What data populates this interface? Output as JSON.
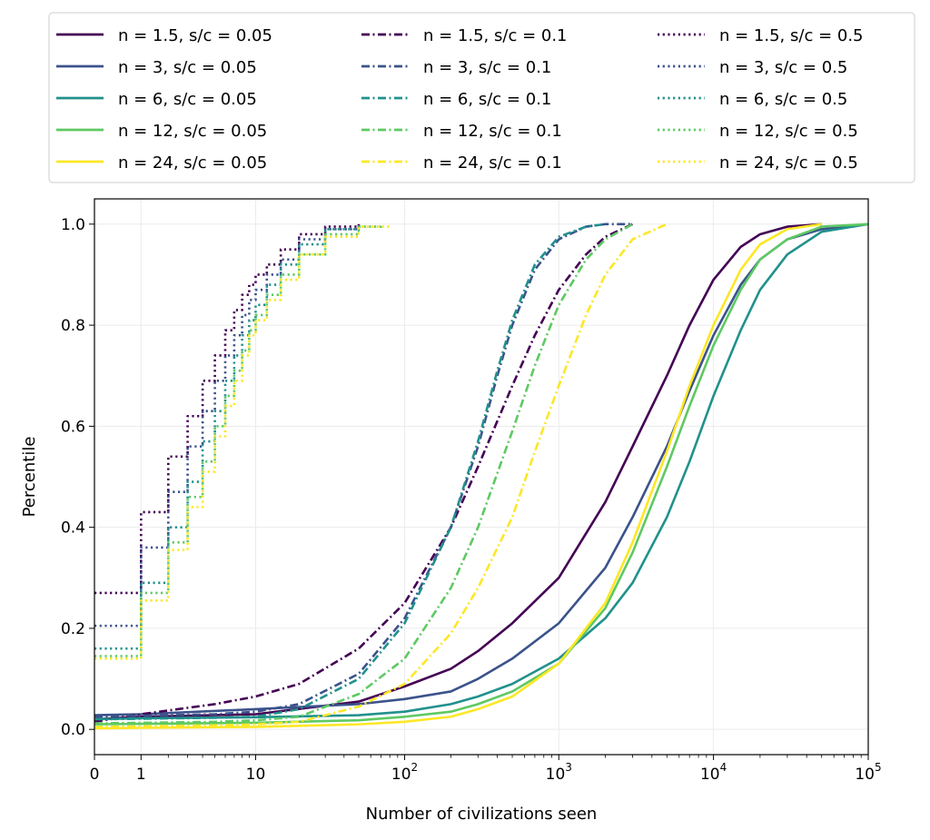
{
  "chart_data": {
    "type": "line",
    "title": "",
    "xlabel": "Number of civilizations seen",
    "ylabel": "Percentile",
    "xscale": "symlog",
    "xlim": [
      0,
      100000
    ],
    "ylim": [
      -0.05,
      1.05
    ],
    "grid": true,
    "legend_position": "top",
    "x_tick_labels": [
      {
        "value": 0,
        "label": "0",
        "exp": ""
      },
      {
        "value": 1,
        "label": "1",
        "exp": ""
      },
      {
        "value": 10,
        "label": "10",
        "exp": ""
      },
      {
        "value": 100,
        "label": "10",
        "exp": "2"
      },
      {
        "value": 1000,
        "label": "10",
        "exp": "3"
      },
      {
        "value": 10000,
        "label": "10",
        "exp": "4"
      },
      {
        "value": 100000,
        "label": "10",
        "exp": "5"
      }
    ],
    "y_ticks": [
      0.0,
      0.2,
      0.4,
      0.6,
      0.8,
      1.0
    ],
    "y_tick_labels": [
      "0.0",
      "0.2",
      "0.4",
      "0.6",
      "0.8",
      "1.0"
    ],
    "colors": {
      "n1.5": "#440154",
      "n3": "#3b528b",
      "n6": "#21918c",
      "n12": "#5ec962",
      "n24": "#fde725"
    },
    "series": [
      {
        "name": "n = 1.5, s/c = 0.05",
        "color": "#440154",
        "dash": "solid",
        "x": [
          0,
          1,
          10,
          50,
          100,
          200,
          300,
          500,
          1000,
          2000,
          3000,
          5000,
          7000,
          10000,
          15000,
          20000,
          30000,
          50000
        ],
        "y": [
          0.02,
          0.025,
          0.03,
          0.055,
          0.085,
          0.12,
          0.155,
          0.21,
          0.3,
          0.45,
          0.56,
          0.7,
          0.8,
          0.89,
          0.955,
          0.98,
          0.995,
          1.0
        ]
      },
      {
        "name": "n = 3, s/c = 0.05",
        "color": "#3b528b",
        "dash": "solid",
        "x": [
          0,
          1,
          10,
          50,
          100,
          200,
          300,
          500,
          1000,
          2000,
          3000,
          5000,
          7000,
          10000,
          15000,
          20000,
          30000,
          50000,
          100000
        ],
        "y": [
          0.028,
          0.03,
          0.04,
          0.05,
          0.06,
          0.075,
          0.1,
          0.14,
          0.21,
          0.32,
          0.42,
          0.56,
          0.67,
          0.78,
          0.88,
          0.93,
          0.97,
          0.99,
          1.0
        ]
      },
      {
        "name": "n = 6, s/c = 0.05",
        "color": "#21918c",
        "dash": "solid",
        "x": [
          0,
          1,
          10,
          50,
          100,
          200,
          300,
          500,
          1000,
          2000,
          3000,
          5000,
          7000,
          10000,
          15000,
          20000,
          30000,
          50000,
          100000
        ],
        "y": [
          0.02,
          0.022,
          0.024,
          0.028,
          0.035,
          0.05,
          0.065,
          0.09,
          0.14,
          0.22,
          0.29,
          0.42,
          0.53,
          0.66,
          0.79,
          0.87,
          0.94,
          0.985,
          1.0
        ]
      },
      {
        "name": "n = 12, s/c = 0.05",
        "color": "#5ec962",
        "dash": "solid",
        "x": [
          0,
          1,
          10,
          50,
          100,
          200,
          300,
          500,
          1000,
          2000,
          3000,
          5000,
          7000,
          10000,
          15000,
          20000,
          30000,
          50000,
          100000
        ],
        "y": [
          0.01,
          0.011,
          0.013,
          0.018,
          0.025,
          0.035,
          0.05,
          0.075,
          0.13,
          0.24,
          0.35,
          0.52,
          0.64,
          0.76,
          0.87,
          0.93,
          0.97,
          0.995,
          1.0
        ]
      },
      {
        "name": "n = 24, s/c = 0.05",
        "color": "#fde725",
        "dash": "solid",
        "x": [
          0,
          1,
          10,
          50,
          100,
          200,
          300,
          500,
          1000,
          2000,
          3000,
          5000,
          7000,
          10000,
          15000,
          20000,
          30000,
          50000
        ],
        "y": [
          0.002,
          0.003,
          0.005,
          0.01,
          0.015,
          0.025,
          0.04,
          0.065,
          0.13,
          0.25,
          0.37,
          0.55,
          0.68,
          0.8,
          0.91,
          0.96,
          0.99,
          1.0
        ]
      },
      {
        "name": "n = 1.5, s/c = 0.1",
        "color": "#440154",
        "dash": "dashdot",
        "x": [
          0,
          1,
          5,
          10,
          20,
          50,
          100,
          200,
          300,
          500,
          700,
          1000,
          1500,
          2000,
          3000
        ],
        "y": [
          0.015,
          0.03,
          0.05,
          0.065,
          0.09,
          0.16,
          0.25,
          0.4,
          0.52,
          0.68,
          0.78,
          0.87,
          0.94,
          0.975,
          1.0
        ]
      },
      {
        "name": "n = 3, s/c = 0.1",
        "color": "#3b528b",
        "dash": "dashdot",
        "x": [
          0,
          1,
          5,
          10,
          20,
          50,
          100,
          200,
          300,
          400,
          500,
          700,
          1000,
          1500,
          2000,
          3000
        ],
        "y": [
          0.025,
          0.027,
          0.03,
          0.035,
          0.05,
          0.11,
          0.22,
          0.4,
          0.56,
          0.7,
          0.8,
          0.91,
          0.97,
          0.995,
          1.0,
          1.0
        ]
      },
      {
        "name": "n = 6, s/c = 0.1",
        "color": "#21918c",
        "dash": "dashdot",
        "x": [
          0,
          1,
          5,
          10,
          20,
          50,
          100,
          200,
          300,
          400,
          500,
          700,
          1000,
          1500,
          2000
        ],
        "y": [
          0.02,
          0.021,
          0.023,
          0.025,
          0.04,
          0.1,
          0.21,
          0.4,
          0.57,
          0.71,
          0.81,
          0.92,
          0.975,
          0.995,
          1.0
        ]
      },
      {
        "name": "n = 12, s/c = 0.1",
        "color": "#5ec962",
        "dash": "dashdot",
        "x": [
          0,
          1,
          5,
          10,
          20,
          50,
          100,
          200,
          300,
          500,
          700,
          1000,
          1500,
          2000,
          3000
        ],
        "y": [
          0.012,
          0.013,
          0.015,
          0.018,
          0.025,
          0.07,
          0.14,
          0.28,
          0.4,
          0.59,
          0.72,
          0.84,
          0.93,
          0.97,
          1.0
        ]
      },
      {
        "name": "n = 24, s/c = 0.1",
        "color": "#fde725",
        "dash": "dashdot",
        "x": [
          0,
          1,
          5,
          10,
          20,
          50,
          100,
          200,
          300,
          500,
          700,
          1000,
          1500,
          2000,
          3000,
          5000
        ],
        "y": [
          0.005,
          0.006,
          0.008,
          0.01,
          0.015,
          0.045,
          0.09,
          0.19,
          0.28,
          0.42,
          0.55,
          0.68,
          0.82,
          0.9,
          0.97,
          1.0
        ]
      },
      {
        "name": "n = 1.5, s/c = 0.5",
        "color": "#440154",
        "dash": "dotted",
        "step": true,
        "x": [
          0,
          1,
          2,
          3,
          4,
          5,
          6,
          7,
          8,
          9,
          10,
          12,
          15,
          20,
          30,
          50
        ],
        "y": [
          0.27,
          0.43,
          0.54,
          0.62,
          0.69,
          0.74,
          0.79,
          0.83,
          0.86,
          0.88,
          0.9,
          0.92,
          0.95,
          0.98,
          0.995,
          1.0
        ]
      },
      {
        "name": "n = 3, s/c = 0.5",
        "color": "#3b528b",
        "dash": "dotted",
        "step": true,
        "x": [
          0,
          1,
          2,
          3,
          4,
          5,
          6,
          7,
          8,
          9,
          10,
          12,
          15,
          20,
          30,
          50
        ],
        "y": [
          0.205,
          0.36,
          0.47,
          0.56,
          0.63,
          0.69,
          0.74,
          0.78,
          0.82,
          0.85,
          0.87,
          0.9,
          0.93,
          0.97,
          0.99,
          1.0
        ]
      },
      {
        "name": "n = 6, s/c = 0.5",
        "color": "#21918c",
        "dash": "dotted",
        "step": true,
        "x": [
          0,
          1,
          2,
          3,
          4,
          5,
          6,
          7,
          8,
          9,
          10,
          12,
          15,
          20,
          30,
          50
        ],
        "y": [
          0.16,
          0.29,
          0.4,
          0.49,
          0.57,
          0.63,
          0.69,
          0.74,
          0.78,
          0.81,
          0.84,
          0.88,
          0.92,
          0.96,
          0.99,
          1.0
        ]
      },
      {
        "name": "n = 12, s/c = 0.5",
        "color": "#5ec962",
        "dash": "dotted",
        "step": true,
        "x": [
          0,
          1,
          2,
          3,
          4,
          5,
          6,
          7,
          8,
          9,
          10,
          12,
          15,
          20,
          30,
          50,
          70
        ],
        "y": [
          0.145,
          0.27,
          0.37,
          0.46,
          0.53,
          0.6,
          0.66,
          0.71,
          0.75,
          0.79,
          0.82,
          0.86,
          0.9,
          0.94,
          0.98,
          0.995,
          1.0
        ]
      },
      {
        "name": "n = 24, s/c = 0.5",
        "color": "#fde725",
        "dash": "dotted",
        "step": true,
        "x": [
          0,
          1,
          2,
          3,
          4,
          5,
          6,
          7,
          8,
          9,
          10,
          12,
          15,
          20,
          30,
          50,
          80
        ],
        "y": [
          0.14,
          0.255,
          0.355,
          0.44,
          0.51,
          0.58,
          0.64,
          0.69,
          0.74,
          0.78,
          0.81,
          0.85,
          0.89,
          0.94,
          0.975,
          0.995,
          1.0
        ]
      }
    ]
  }
}
